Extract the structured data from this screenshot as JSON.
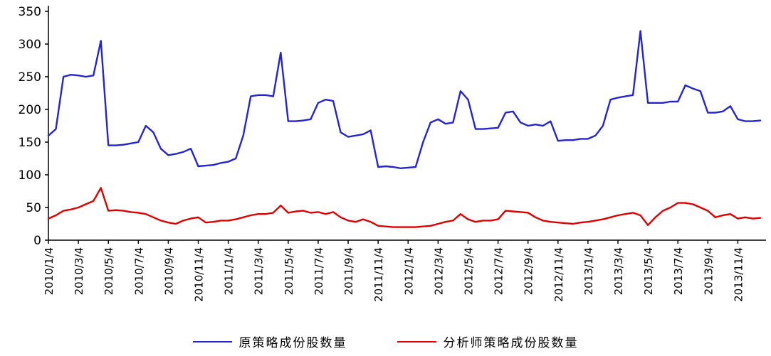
{
  "chart_data": {
    "type": "line",
    "title": "",
    "xlabel": "",
    "ylabel": "",
    "ylim": [
      0,
      350
    ],
    "yticks": [
      0,
      50,
      100,
      150,
      200,
      250,
      300,
      350
    ],
    "grid": false,
    "legend_position": "bottom",
    "x_tick_labels": [
      "2010/1/4",
      "2010/3/4",
      "2010/5/4",
      "2010/7/4",
      "2010/9/4",
      "2010/11/4",
      "2011/1/4",
      "2011/3/4",
      "2011/5/4",
      "2011/7/4",
      "2011/9/4",
      "2011/11/4",
      "2012/1/4",
      "2012/3/4",
      "2012/5/4",
      "2012/7/4",
      "2012/9/4",
      "2012/11/4",
      "2013/1/4",
      "2013/3/4",
      "2013/5/4",
      "2013/7/4",
      "2013/9/4",
      "2013/11/4"
    ],
    "points_per_tick": 4,
    "series": [
      {
        "name": "原策略成份股数量",
        "color": "#2424d0",
        "values": [
          160,
          170,
          250,
          253,
          252,
          250,
          252,
          305,
          145,
          145,
          146,
          148,
          150,
          175,
          165,
          140,
          130,
          132,
          135,
          140,
          113,
          114,
          115,
          118,
          120,
          125,
          160,
          220,
          222,
          222,
          220,
          287,
          182,
          182,
          183,
          185,
          210,
          215,
          213,
          165,
          158,
          160,
          162,
          168,
          112,
          113,
          112,
          110,
          111,
          112,
          150,
          180,
          185,
          178,
          180,
          228,
          215,
          170,
          170,
          171,
          172,
          195,
          197,
          180,
          175,
          177,
          175,
          182,
          152,
          153,
          153,
          155,
          155,
          160,
          175,
          215,
          218,
          220,
          222,
          320,
          210,
          210,
          210,
          212,
          212,
          237,
          232,
          228,
          195,
          195,
          197,
          205,
          185,
          182,
          182,
          183
        ]
      },
      {
        "name": "分析师策略成份股数量",
        "color": "#e00000",
        "values": [
          33,
          38,
          45,
          47,
          50,
          55,
          60,
          80,
          45,
          46,
          45,
          43,
          42,
          40,
          35,
          30,
          27,
          25,
          30,
          33,
          35,
          27,
          28,
          30,
          30,
          32,
          35,
          38,
          40,
          40,
          42,
          53,
          42,
          44,
          45,
          42,
          43,
          40,
          43,
          35,
          30,
          28,
          32,
          28,
          22,
          21,
          20,
          20,
          20,
          20,
          21,
          22,
          25,
          28,
          30,
          40,
          32,
          28,
          30,
          30,
          32,
          45,
          44,
          43,
          42,
          35,
          30,
          28,
          27,
          26,
          25,
          27,
          28,
          30,
          32,
          35,
          38,
          40,
          42,
          38,
          23,
          35,
          45,
          50,
          57,
          57,
          55,
          50,
          45,
          35,
          38,
          40,
          33,
          35,
          33,
          34
        ]
      }
    ]
  }
}
